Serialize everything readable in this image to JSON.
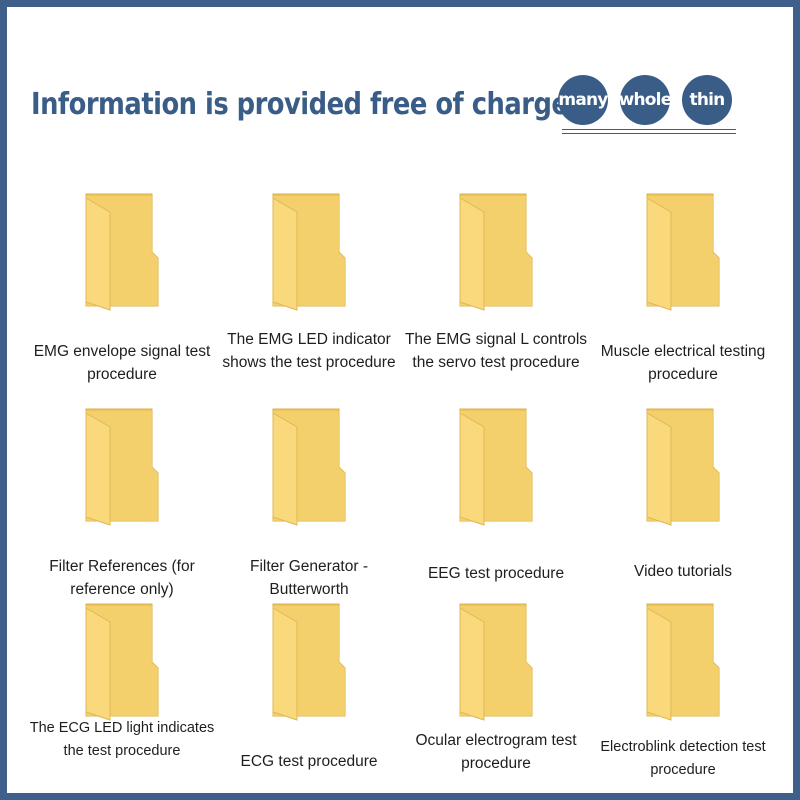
{
  "header": {
    "title": "Information is provided free of charge",
    "badges": [
      "many",
      "whole",
      "thin"
    ]
  },
  "colors": {
    "border": "#3e5f8a",
    "accent": "#3a5d88",
    "folder_front": "#f9d97c",
    "folder_back": "#eec55c"
  },
  "folders": [
    {
      "icon": "folder-icon",
      "label": "EMG envelope signal test procedure"
    },
    {
      "icon": "folder-icon",
      "label": "The EMG LED indicator shows the test procedure"
    },
    {
      "icon": "folder-icon",
      "label": "The EMG signal L controls the servo test procedure"
    },
    {
      "icon": "folder-icon",
      "label": "Muscle electrical testing procedure"
    },
    {
      "icon": "folder-icon",
      "label": "Filter References (for reference only)"
    },
    {
      "icon": "folder-icon",
      "label": "Filter Generator - Butterworth"
    },
    {
      "icon": "folder-icon",
      "label": "EEG test procedure"
    },
    {
      "icon": "folder-icon",
      "label": "Video tutorials"
    },
    {
      "icon": "folder-icon",
      "label": "The ECG LED light indicates the test procedure"
    },
    {
      "icon": "folder-icon",
      "label": "ECG test procedure"
    },
    {
      "icon": "folder-icon",
      "label": "Ocular electrogram test procedure"
    },
    {
      "icon": "folder-icon",
      "label": "Electroblink detection test procedure"
    }
  ]
}
